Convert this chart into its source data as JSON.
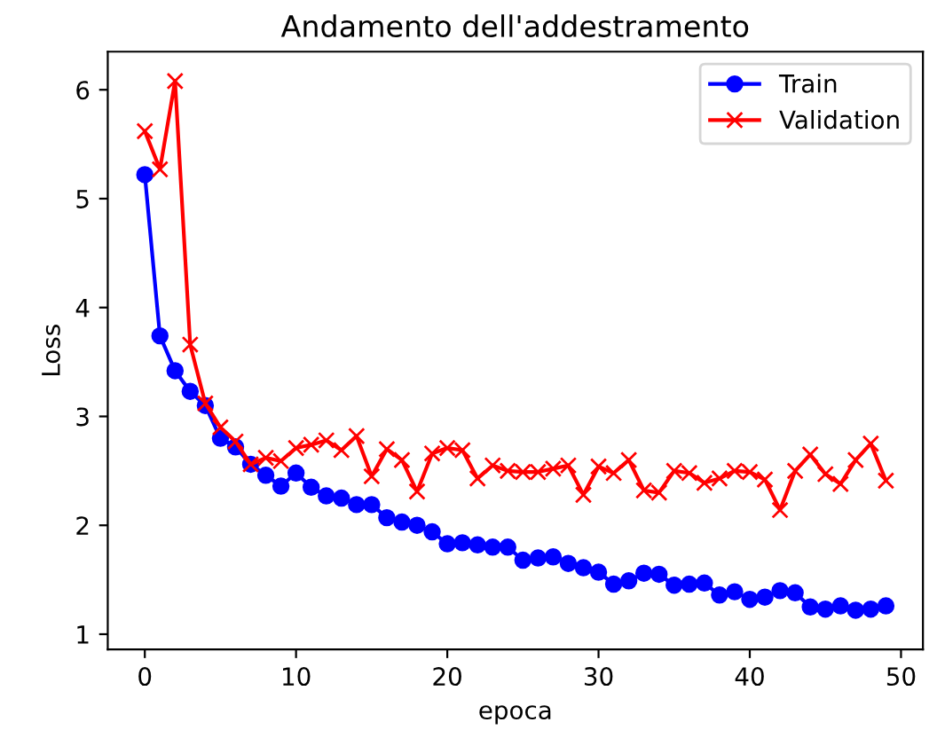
{
  "chart_data": {
    "type": "line",
    "title": "Andamento dell'addestramento",
    "xlabel": "epoca",
    "ylabel": "Loss",
    "x": [
      0,
      1,
      2,
      3,
      4,
      5,
      6,
      7,
      8,
      9,
      10,
      11,
      12,
      13,
      14,
      15,
      16,
      17,
      18,
      19,
      20,
      21,
      22,
      23,
      24,
      25,
      26,
      27,
      28,
      29,
      30,
      31,
      32,
      33,
      34,
      35,
      36,
      37,
      38,
      39,
      40,
      41,
      42,
      43,
      44,
      45,
      46,
      47,
      48,
      49
    ],
    "series": [
      {
        "name": "Train",
        "color": "#0000ff",
        "marker": "circle",
        "values": [
          5.22,
          3.74,
          3.42,
          3.23,
          3.1,
          2.8,
          2.72,
          2.56,
          2.46,
          2.36,
          2.48,
          2.35,
          2.27,
          2.25,
          2.19,
          2.19,
          2.07,
          2.03,
          2.0,
          1.94,
          1.83,
          1.84,
          1.82,
          1.8,
          1.8,
          1.68,
          1.7,
          1.71,
          1.65,
          1.61,
          1.57,
          1.46,
          1.49,
          1.56,
          1.55,
          1.45,
          1.46,
          1.47,
          1.36,
          1.39,
          1.32,
          1.34,
          1.4,
          1.38,
          1.25,
          1.23,
          1.26,
          1.22,
          1.23,
          1.26
        ]
      },
      {
        "name": "Validation",
        "color": "#ff0000",
        "marker": "cross",
        "values": [
          5.62,
          5.27,
          6.08,
          3.66,
          3.12,
          2.9,
          2.77,
          2.56,
          2.62,
          2.59,
          2.71,
          2.74,
          2.78,
          2.69,
          2.82,
          2.45,
          2.7,
          2.6,
          2.31,
          2.66,
          2.71,
          2.69,
          2.43,
          2.55,
          2.5,
          2.49,
          2.49,
          2.52,
          2.55,
          2.28,
          2.54,
          2.48,
          2.6,
          2.32,
          2.3,
          2.5,
          2.48,
          2.39,
          2.43,
          2.5,
          2.49,
          2.42,
          2.14,
          2.5,
          2.65,
          2.47,
          2.38,
          2.6,
          2.75,
          2.41
        ]
      }
    ],
    "xlim": [
      -2.45,
      51.45
    ],
    "xticks": [
      0,
      10,
      20,
      30,
      40,
      50
    ],
    "ylim": [
      0.86,
      6.35
    ],
    "yticks": [
      1,
      2,
      3,
      4,
      5,
      6
    ],
    "legend": "top right",
    "grid": false,
    "line_style": "solid"
  }
}
